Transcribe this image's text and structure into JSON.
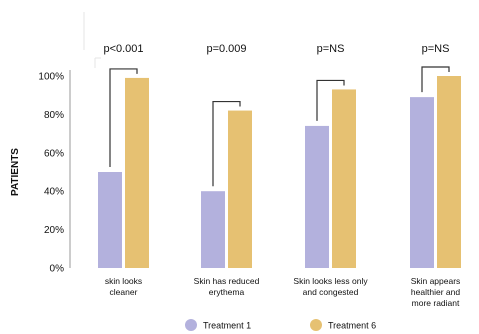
{
  "chart_data": {
    "type": "bar",
    "ylabel": "PATIENTS",
    "xlabel": "",
    "ylim": [
      0,
      100
    ],
    "yticks": [
      0,
      20,
      40,
      60,
      80,
      100
    ],
    "ytick_labels": [
      "0%",
      "20%",
      "40%",
      "60%",
      "80%",
      "100%"
    ],
    "categories": [
      [
        "skin looks",
        "cleaner"
      ],
      [
        "Skin has reduced",
        "erythema"
      ],
      [
        "Skin looks less only",
        "and congested"
      ],
      [
        "Skin appears",
        "healthier and",
        "more radiant"
      ]
    ],
    "series": [
      {
        "name": "Treatment 1",
        "color": "#b3b1dd",
        "values": [
          50,
          40,
          74,
          89
        ]
      },
      {
        "name": "Treatment 6",
        "color": "#e6c172",
        "values": [
          99,
          82,
          93,
          100
        ]
      }
    ],
    "annotations": [
      "p<0.001",
      "p=0.009",
      "p=NS",
      "p=NS"
    ],
    "legend_position": "bottom",
    "grid": false
  }
}
